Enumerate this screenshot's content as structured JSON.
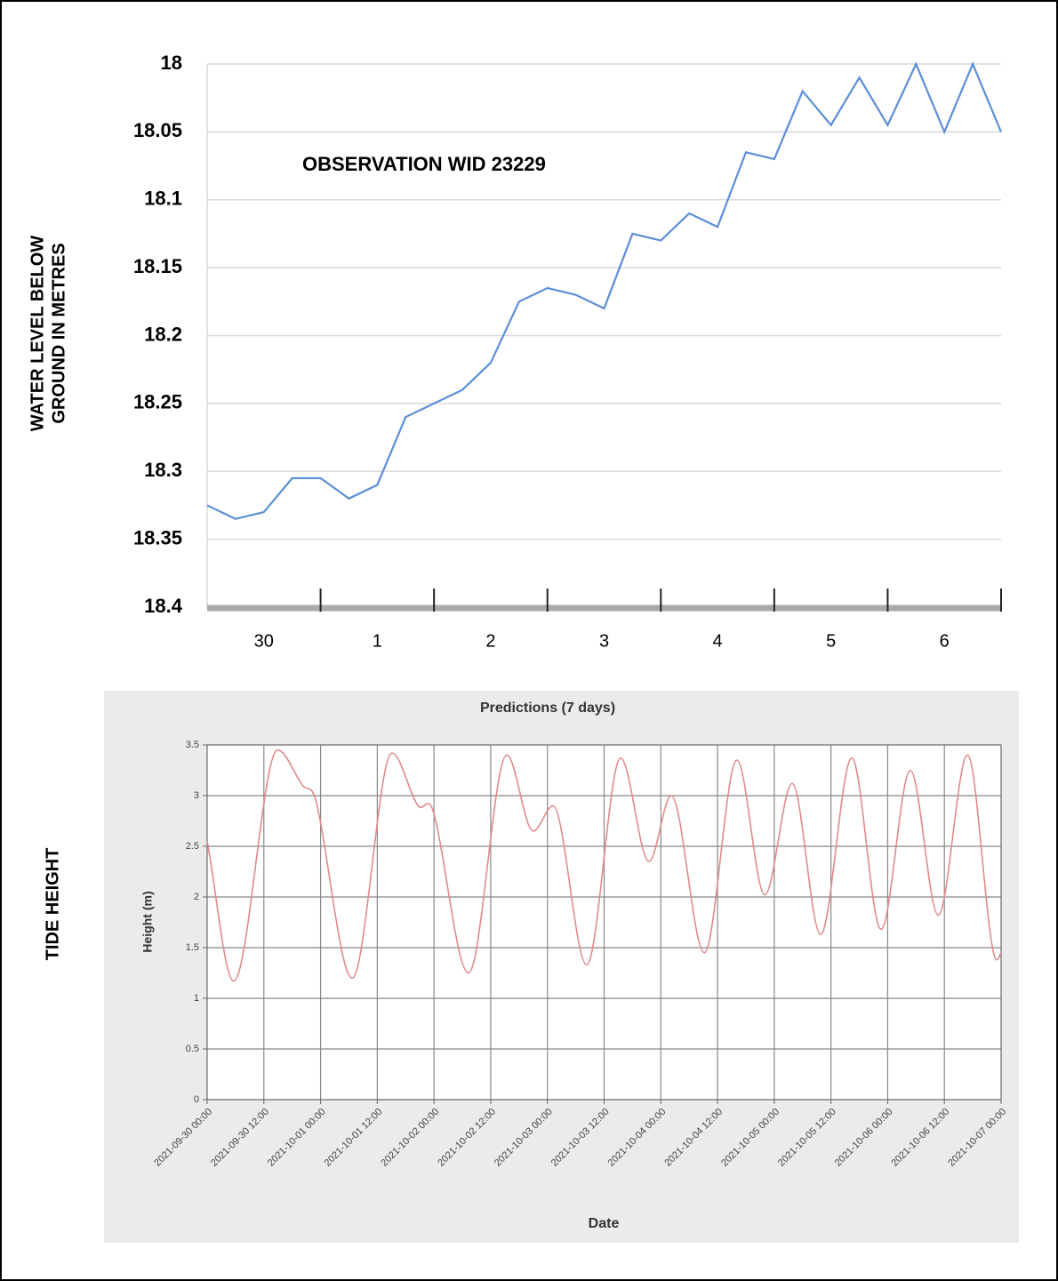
{
  "chart_data": [
    {
      "type": "line",
      "title": "OBSERVATION WID 23229",
      "ylabel": [
        "WATER LEVEL BELOW",
        "GROUND IN METRES"
      ],
      "day_labels": [
        "30",
        "1",
        "2",
        "3",
        "4",
        "5",
        "6"
      ],
      "xlim": [
        0,
        7
      ],
      "ylim": [
        18,
        18.4
      ],
      "invert_y": true,
      "yticks": [
        18,
        18.05,
        18.1,
        18.15,
        18.2,
        18.25,
        18.3,
        18.35,
        18.4
      ],
      "grid": true,
      "x": [
        0,
        0.25,
        0.5,
        0.75,
        1,
        1.25,
        1.5,
        1.75,
        2,
        2.25,
        2.5,
        2.75,
        3,
        3.25,
        3.5,
        3.75,
        4,
        4.25,
        4.5,
        4.75,
        5,
        5.25,
        5.5,
        5.75,
        6,
        6.25,
        6.5,
        6.75,
        7
      ],
      "series": [
        {
          "color": "#5b8fd6",
          "values": [
            18.325,
            18.335,
            18.33,
            18.305,
            18.305,
            18.32,
            18.31,
            18.26,
            18.25,
            18.24,
            18.22,
            18.175,
            18.165,
            18.17,
            18.18,
            18.125,
            18.13,
            18.11,
            18.12,
            18.065,
            18.07,
            18.02,
            18.045,
            18.01,
            18.045,
            18.0,
            18.05,
            18.0,
            18.05
          ]
        }
      ]
    },
    {
      "type": "spline",
      "title": "Predictions (7 days)",
      "side_label": "TIDE HEIGHT",
      "xlabel": "Date",
      "ylabel": "Height (m)",
      "xlim": [
        0,
        168
      ],
      "ylim": [
        0,
        3.5
      ],
      "grid": true,
      "yticks": [
        0,
        0.5,
        1,
        1.5,
        2,
        2.5,
        3,
        3.5
      ],
      "xticks": [
        {
          "value": 0,
          "label": "2021-09-30 00:00"
        },
        {
          "value": 12,
          "label": "2021-09-30 12:00"
        },
        {
          "value": 24,
          "label": "2021-10-01 00:00"
        },
        {
          "value": 36,
          "label": "2021-10-01 12:00"
        },
        {
          "value": 48,
          "label": "2021-10-02 00:00"
        },
        {
          "value": 60,
          "label": "2021-10-02 12:00"
        },
        {
          "value": 72,
          "label": "2021-10-03 00:00"
        },
        {
          "value": 84,
          "label": "2021-10-03 12:00"
        },
        {
          "value": 96,
          "label": "2021-10-04 00:00"
        },
        {
          "value": 108,
          "label": "2021-10-04 12:00"
        },
        {
          "value": 120,
          "label": "2021-10-05 00:00"
        },
        {
          "value": 132,
          "label": "2021-10-05 12:00"
        },
        {
          "value": 144,
          "label": "2021-10-06 00:00"
        },
        {
          "value": 156,
          "label": "2021-10-06 12:00"
        },
        {
          "value": 168,
          "label": "2021-10-07 00:00"
        }
      ],
      "x": [
        0,
        5.6,
        14.9,
        20.2,
        23,
        30.7,
        39.1,
        44.6,
        47.8,
        55.3,
        63.4,
        69,
        73.2,
        80.3,
        87.5,
        93.5,
        98.2,
        105.2,
        112.1,
        118,
        123.8,
        129.8,
        136.4,
        142.6,
        148.8,
        154.7,
        160.9,
        167.1,
        168
      ],
      "series": [
        {
          "color": "#e08a8a",
          "values": [
            2.55,
            1.17,
            3.45,
            3.1,
            2.95,
            1.2,
            3.42,
            2.9,
            2.85,
            1.25,
            3.4,
            2.65,
            2.9,
            1.33,
            3.37,
            2.35,
            3.0,
            1.45,
            3.35,
            2.02,
            3.12,
            1.63,
            3.37,
            1.68,
            3.25,
            1.82,
            3.4,
            1.38,
            1.45
          ]
        }
      ]
    }
  ]
}
